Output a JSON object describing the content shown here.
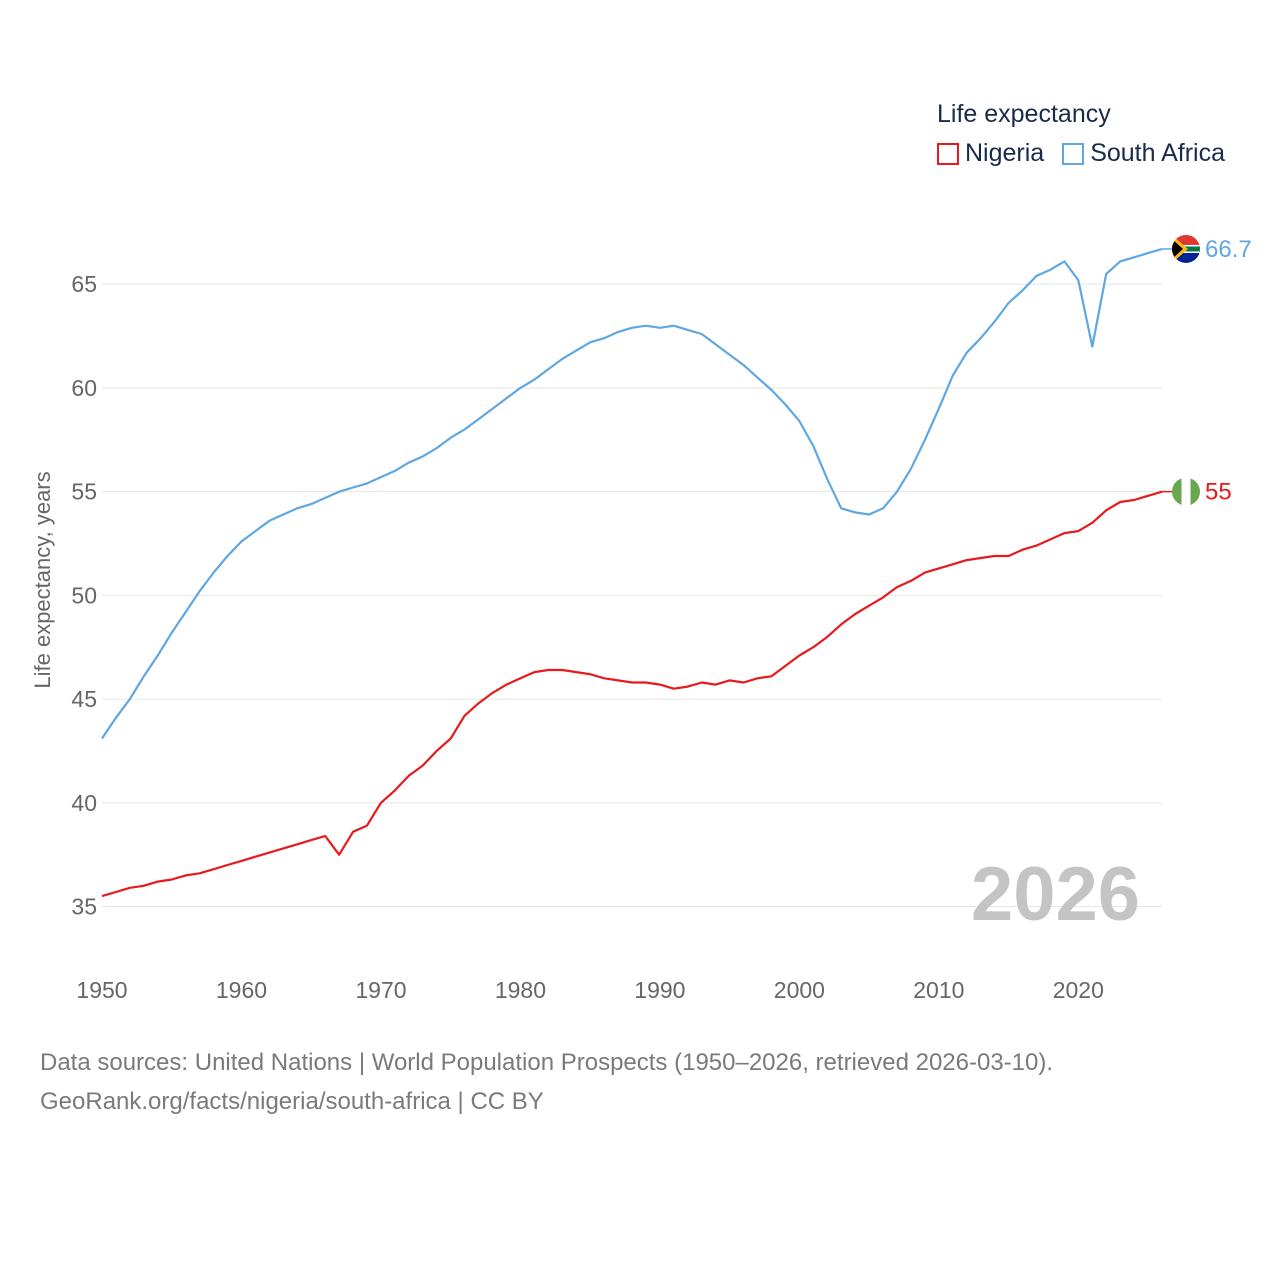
{
  "legend": {
    "title": "Life expectancy",
    "items": [
      {
        "name": "Nigeria",
        "color": "#e8191c"
      },
      {
        "name": "South Africa",
        "color": "#5ea7e2"
      }
    ]
  },
  "source": {
    "line1": "Data sources: United Nations | World Population Prospects (1950–2026, retrieved 2026-03-10).",
    "line2": "GeoRank.org/facts/nigeria/south-africa | CC BY"
  },
  "chart_data": {
    "type": "line",
    "title": "Life expectancy",
    "xlabel": "",
    "ylabel": "Life expectancy, years",
    "xlim": [
      1950,
      2026
    ],
    "ylim": [
      33,
      68
    ],
    "xticks": [
      1950,
      1960,
      1970,
      1980,
      1990,
      2000,
      2010,
      2020
    ],
    "yticks": [
      35,
      40,
      45,
      50,
      55,
      60,
      65
    ],
    "grid": true,
    "legend_position": "top-right",
    "year_label": "2026",
    "x": [
      1950,
      1951,
      1952,
      1953,
      1954,
      1955,
      1956,
      1957,
      1958,
      1959,
      1960,
      1961,
      1962,
      1963,
      1964,
      1965,
      1966,
      1967,
      1968,
      1969,
      1970,
      1971,
      1972,
      1973,
      1974,
      1975,
      1976,
      1977,
      1978,
      1979,
      1980,
      1981,
      1982,
      1983,
      1984,
      1985,
      1986,
      1987,
      1988,
      1989,
      1990,
      1991,
      1992,
      1993,
      1994,
      1995,
      1996,
      1997,
      1998,
      1999,
      2000,
      2001,
      2002,
      2003,
      2004,
      2005,
      2006,
      2007,
      2008,
      2009,
      2010,
      2011,
      2012,
      2013,
      2014,
      2015,
      2016,
      2017,
      2018,
      2019,
      2020,
      2021,
      2022,
      2023,
      2024,
      2025,
      2026
    ],
    "series": [
      {
        "name": "Nigeria",
        "color": "#e8191c",
        "end_label": "55",
        "values": [
          35.5,
          35.7,
          35.9,
          36.0,
          36.2,
          36.3,
          36.5,
          36.6,
          36.8,
          37.0,
          37.2,
          37.4,
          37.6,
          37.8,
          38.0,
          38.2,
          38.4,
          37.5,
          38.6,
          38.9,
          40.0,
          40.6,
          41.3,
          41.8,
          42.5,
          43.1,
          44.2,
          44.8,
          45.3,
          45.7,
          46.0,
          46.3,
          46.4,
          46.4,
          46.3,
          46.2,
          46.0,
          45.9,
          45.8,
          45.8,
          45.7,
          45.5,
          45.6,
          45.8,
          45.7,
          45.9,
          45.8,
          46.0,
          46.1,
          46.6,
          47.1,
          47.5,
          48.0,
          48.6,
          49.1,
          49.5,
          49.9,
          50.4,
          50.7,
          51.1,
          51.3,
          51.5,
          51.7,
          51.8,
          51.9,
          51.9,
          52.2,
          52.4,
          52.7,
          53.0,
          53.1,
          53.5,
          54.1,
          54.5,
          54.6,
          54.8,
          55.0
        ]
      },
      {
        "name": "South Africa",
        "color": "#5ea7e2",
        "end_label": "66.7",
        "values": [
          43.1,
          44.1,
          45.0,
          46.1,
          47.1,
          48.2,
          49.2,
          50.2,
          51.1,
          51.9,
          52.6,
          53.1,
          53.6,
          53.9,
          54.2,
          54.4,
          54.7,
          55.0,
          55.2,
          55.4,
          55.7,
          56.0,
          56.4,
          56.7,
          57.1,
          57.6,
          58.0,
          58.5,
          59.0,
          59.5,
          60.0,
          60.4,
          60.9,
          61.4,
          61.8,
          62.2,
          62.4,
          62.7,
          62.9,
          63.0,
          62.9,
          63.0,
          62.8,
          62.6,
          62.1,
          61.6,
          61.1,
          60.5,
          59.9,
          59.2,
          58.4,
          57.2,
          55.6,
          54.2,
          54.0,
          53.9,
          54.2,
          55.0,
          56.1,
          57.5,
          59.0,
          60.6,
          61.7,
          62.4,
          63.2,
          64.1,
          64.7,
          65.4,
          65.7,
          66.1,
          65.2,
          62.0,
          65.5,
          66.1,
          66.3,
          66.5,
          66.7
        ]
      }
    ]
  }
}
